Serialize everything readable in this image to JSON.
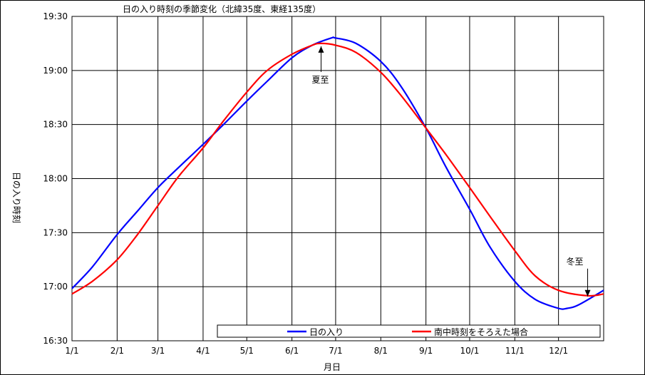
{
  "chart_data": {
    "type": "line",
    "title": "日の入り時刻の季節変化（北緯35度、東経135度）",
    "xlabel": "月日",
    "ylabel": "日の入り時刻",
    "x_ticks": [
      "1/1",
      "2/1",
      "3/1",
      "4/1",
      "5/1",
      "6/1",
      "7/1",
      "8/1",
      "9/1",
      "10/1",
      "11/1",
      "12/1"
    ],
    "y_ticks": [
      "16:30",
      "17:00",
      "17:30",
      "18:00",
      "18:30",
      "19:00",
      "19:30"
    ],
    "ylim": [
      "16:30",
      "19:30"
    ],
    "xlim": [
      "1/1",
      "12/31"
    ],
    "grid": true,
    "legend_position": "bottom",
    "series": [
      {
        "name": "日の入り",
        "color": "#0000ff",
        "points": [
          [
            "1/1",
            "16:59"
          ],
          [
            "1/15",
            "17:11"
          ],
          [
            "2/1",
            "17:29"
          ],
          [
            "2/15",
            "17:42"
          ],
          [
            "3/1",
            "17:55"
          ],
          [
            "3/15",
            "18:06"
          ],
          [
            "4/1",
            "18:19"
          ],
          [
            "4/15",
            "18:30"
          ],
          [
            "5/1",
            "18:43"
          ],
          [
            "5/15",
            "18:54"
          ],
          [
            "6/1",
            "19:07"
          ],
          [
            "6/15",
            "19:14"
          ],
          [
            "6/28",
            "19:18"
          ],
          [
            "7/1",
            "19:18"
          ],
          [
            "7/15",
            "19:15"
          ],
          [
            "8/1",
            "19:05"
          ],
          [
            "8/15",
            "18:51"
          ],
          [
            "9/1",
            "18:28"
          ],
          [
            "9/15",
            "18:06"
          ],
          [
            "10/1",
            "17:43"
          ],
          [
            "10/15",
            "17:22"
          ],
          [
            "11/1",
            "17:03"
          ],
          [
            "11/15",
            "16:53"
          ],
          [
            "12/1",
            "16:48"
          ],
          [
            "12/7",
            "16:48"
          ],
          [
            "12/15",
            "16:50"
          ],
          [
            "12/31",
            "16:58"
          ]
        ]
      },
      {
        "name": "南中時刻をそろえた場合",
        "color": "#ff0000",
        "points": [
          [
            "1/1",
            "16:56"
          ],
          [
            "1/15",
            "17:03"
          ],
          [
            "2/1",
            "17:15"
          ],
          [
            "2/15",
            "17:29"
          ],
          [
            "3/1",
            "17:45"
          ],
          [
            "3/15",
            "18:01"
          ],
          [
            "4/1",
            "18:17"
          ],
          [
            "4/15",
            "18:32"
          ],
          [
            "5/1",
            "18:48"
          ],
          [
            "5/15",
            "19:00"
          ],
          [
            "6/1",
            "19:09"
          ],
          [
            "6/15",
            "19:14"
          ],
          [
            "6/21",
            "19:15"
          ],
          [
            "7/1",
            "19:14"
          ],
          [
            "7/15",
            "19:10"
          ],
          [
            "8/1",
            "18:59"
          ],
          [
            "8/15",
            "18:46"
          ],
          [
            "9/1",
            "18:28"
          ],
          [
            "9/15",
            "18:13"
          ],
          [
            "10/1",
            "17:55"
          ],
          [
            "10/15",
            "17:39"
          ],
          [
            "11/1",
            "17:20"
          ],
          [
            "11/15",
            "17:06"
          ],
          [
            "12/1",
            "16:58"
          ],
          [
            "12/21",
            "16:55"
          ],
          [
            "12/31",
            "16:56"
          ]
        ]
      }
    ],
    "annotations": [
      {
        "text": "夏至",
        "date": "6/21",
        "time": "19:15"
      },
      {
        "text": "冬至",
        "date": "12/21",
        "time": "16:55"
      }
    ]
  }
}
